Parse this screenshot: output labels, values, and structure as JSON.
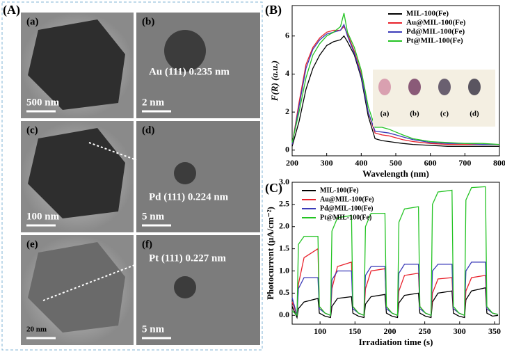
{
  "panel_labels": [
    "(A)",
    "(B)",
    "(C)"
  ],
  "images": [
    {
      "label": "(a)",
      "scale_bar": "500 nm"
    },
    {
      "label": "(b)",
      "scale_bar": "2 nm",
      "annotation": "Au (111) 0.235 nm"
    },
    {
      "label": "(c)",
      "scale_bar": "100 nm"
    },
    {
      "label": "(d)",
      "scale_bar": "5 nm",
      "annotation": "Pd (111) 0.224 nm"
    },
    {
      "label": "(e)",
      "scale_bar": "20 nm"
    },
    {
      "label": "(f)",
      "scale_bar": "5 nm",
      "annotation": "Pt (111) 0.227 nm"
    }
  ],
  "chart_data": [
    {
      "type": "line",
      "xlabel": "Wavelength (nm)",
      "ylabel": "F(R) (a.u.)",
      "legend": "upper right",
      "inset_labels": [
        "(a)",
        "(b)",
        "(c)",
        "(d)"
      ],
      "x": [
        200,
        220,
        240,
        260,
        280,
        300,
        320,
        340,
        350,
        360,
        380,
        400,
        420,
        440,
        460,
        480,
        500,
        520,
        550,
        600,
        650,
        700,
        750,
        800
      ],
      "xlim": [
        200,
        800
      ],
      "xticks": [
        200,
        300,
        400,
        500,
        600,
        700,
        800
      ],
      "ylim": [
        -0.3,
        7.6
      ],
      "yticks": [
        0,
        2,
        4,
        6
      ],
      "series": [
        {
          "name": "MIL-100(Fe)",
          "color": "#000000",
          "values": [
            0.2,
            1.5,
            3.2,
            4.3,
            5.0,
            5.5,
            5.7,
            5.8,
            6.0,
            5.7,
            5.0,
            3.8,
            1.8,
            0.6,
            0.5,
            0.45,
            0.4,
            0.35,
            0.3,
            0.25,
            0.2,
            0.2,
            0.2,
            0.2
          ]
        },
        {
          "name": "Au@MIL-100(Fe)",
          "color": "#e8202a",
          "values": [
            0.3,
            2.5,
            4.5,
            5.4,
            5.9,
            6.2,
            6.3,
            6.3,
            6.5,
            6.1,
            5.2,
            4.0,
            2.0,
            0.9,
            0.8,
            0.75,
            0.65,
            0.55,
            0.45,
            0.35,
            0.3,
            0.3,
            0.3,
            0.3
          ]
        },
        {
          "name": "Pd@MIL-100(Fe)",
          "color": "#3a3ab8",
          "values": [
            0.3,
            2.3,
            4.3,
            5.3,
            5.8,
            6.1,
            6.2,
            6.3,
            6.6,
            6.0,
            5.1,
            3.9,
            2.0,
            1.0,
            0.95,
            0.9,
            0.8,
            0.7,
            0.55,
            0.4,
            0.35,
            0.35,
            0.3,
            0.3
          ]
        },
        {
          "name": "Pt@MIL-100(Fe)",
          "color": "#22c322",
          "values": [
            0.4,
            2.0,
            3.8,
            5.0,
            5.6,
            6.0,
            6.2,
            6.5,
            7.2,
            6.2,
            5.4,
            4.2,
            2.3,
            1.2,
            1.2,
            1.1,
            0.95,
            0.8,
            0.6,
            0.45,
            0.4,
            0.35,
            0.35,
            0.3
          ]
        }
      ]
    },
    {
      "type": "line",
      "xlabel": "Irradiation time (s)",
      "ylabel": "Photocurrent  (μA/cm⁻²)",
      "legend": "upper left",
      "x": [
        60,
        67,
        69,
        77,
        97,
        99,
        107,
        115,
        117,
        125,
        145,
        147,
        155,
        163,
        165,
        173,
        193,
        195,
        203,
        211,
        213,
        221,
        241,
        243,
        251,
        259,
        261,
        269,
        289,
        291,
        299,
        307,
        309,
        317,
        337,
        339,
        347,
        355
      ],
      "xlim": [
        60,
        357
      ],
      "xticks": [
        100,
        150,
        200,
        250,
        300,
        350
      ],
      "ylim": [
        -0.2,
        3.0
      ],
      "yticks": [
        {
          "value": 0,
          "label": "0.0"
        },
        {
          "value": 0.5,
          "label": "0.5"
        },
        {
          "value": 1,
          "label": "1.0"
        },
        {
          "value": 1.5,
          "label": "1.5"
        },
        {
          "value": 2,
          "label": "2.0"
        },
        {
          "value": 2.5,
          "label": "2.5"
        },
        {
          "value": 3,
          "label": "3.0"
        }
      ],
      "series": [
        {
          "name": "MIL-100(Fe)",
          "color": "#000000",
          "values": [
            0.2,
            -0.05,
            0.15,
            0.3,
            0.38,
            0.05,
            -0.02,
            -0.05,
            0.2,
            0.38,
            0.42,
            0.05,
            -0.02,
            -0.05,
            0.25,
            0.42,
            0.47,
            0.05,
            -0.02,
            -0.05,
            0.28,
            0.45,
            0.5,
            0.05,
            -0.02,
            -0.05,
            0.3,
            0.5,
            0.55,
            0.05,
            -0.02,
            -0.05,
            0.35,
            0.55,
            0.62,
            0.05,
            -0.02,
            0.0
          ]
        },
        {
          "name": "Au@MIL-100(Fe)",
          "color": "#e8202a",
          "values": [
            0.3,
            0.0,
            0.7,
            1.3,
            1.5,
            0.2,
            0.05,
            0.0,
            0.6,
            1.1,
            1.2,
            0.2,
            0.05,
            0.0,
            0.6,
            1.0,
            1.05,
            0.2,
            0.05,
            0.0,
            0.55,
            0.9,
            0.95,
            0.2,
            0.05,
            0.0,
            0.5,
            0.82,
            0.85,
            0.15,
            0.05,
            0.0,
            0.55,
            0.85,
            0.9,
            0.15,
            0.05,
            0.02
          ]
        },
        {
          "name": "Pd@MIL-100(Fe)",
          "color": "#3a3ab8",
          "values": [
            0.4,
            0.0,
            0.6,
            0.85,
            0.85,
            0.15,
            0.05,
            0.0,
            0.8,
            1.0,
            1.0,
            0.15,
            0.05,
            0.0,
            0.9,
            1.1,
            1.1,
            0.15,
            0.05,
            0.0,
            0.95,
            1.15,
            1.15,
            0.15,
            0.05,
            0.0,
            1.0,
            1.15,
            1.15,
            0.15,
            0.05,
            0.0,
            1.0,
            1.2,
            1.2,
            0.15,
            0.05,
            0.02
          ]
        },
        {
          "name": "Pt@MIL-100(Fe)",
          "color": "#22c322",
          "values": [
            0.1,
            0.0,
            1.6,
            1.78,
            1.78,
            0.2,
            0.05,
            0.0,
            1.9,
            2.2,
            2.25,
            0.2,
            0.05,
            0.0,
            2.0,
            2.3,
            2.3,
            0.2,
            0.05,
            0.0,
            2.1,
            2.4,
            2.45,
            0.2,
            0.05,
            0.0,
            2.5,
            2.78,
            2.82,
            0.2,
            0.05,
            0.0,
            2.6,
            2.88,
            2.9,
            0.2,
            0.05,
            0.02
          ]
        }
      ]
    }
  ]
}
